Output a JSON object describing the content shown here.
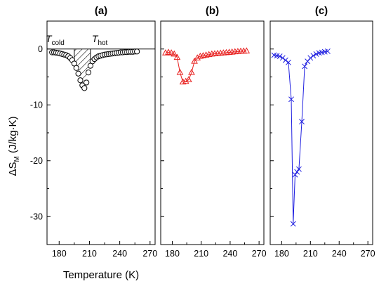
{
  "figure": {
    "ylabel_prefix": "ΔS",
    "ylabel_sub": "M",
    "ylabel_suffix": " (J/kg·K)",
    "colors": {
      "a": "#000000",
      "b": "#e8201f",
      "c": "#1f1fe0",
      "hatch": "#000000"
    }
  },
  "chart_data": [
    {
      "type": "scatter",
      "panel": "a",
      "title": "(a)",
      "xlabel": "Temperature (K)",
      "xlim": [
        168,
        275
      ],
      "ylim": [
        -35,
        5
      ],
      "xticks": [
        180,
        210,
        240,
        270
      ],
      "yticks": [
        0,
        -10,
        -20,
        -30
      ],
      "marker": "circle",
      "connected": false,
      "baseline": 0,
      "annotations": {
        "t_cold": {
          "base": "T",
          "sub": "cold",
          "x": 195
        },
        "t_hot": {
          "base": "T",
          "sub": "hot",
          "x": 211
        },
        "shaded_region": [
          195,
          211
        ]
      },
      "series": [
        {
          "x": [
            173,
            175,
            177,
            179,
            181,
            183,
            185,
            187,
            189,
            191,
            193,
            195,
            197,
            199,
            201,
            203,
            205,
            207,
            209,
            211,
            213,
            215,
            217,
            219,
            221,
            223,
            225,
            227,
            229,
            231,
            233,
            235,
            237,
            239,
            241,
            243,
            245,
            247,
            249,
            251,
            253,
            255,
            257
          ],
          "y": [
            -0.6,
            -0.6,
            -0.65,
            -0.7,
            -0.8,
            -0.9,
            -1.0,
            -1.1,
            -1.3,
            -1.6,
            -2.0,
            -2.6,
            -3.4,
            -4.4,
            -5.6,
            -6.5,
            -7.0,
            -6.0,
            -4.2,
            -3.0,
            -2.2,
            -1.8,
            -1.5,
            -1.3,
            -1.2,
            -1.1,
            -1.0,
            -0.95,
            -0.9,
            -0.85,
            -0.8,
            -0.75,
            -0.7,
            -0.65,
            -0.6,
            -0.6,
            -0.55,
            -0.55,
            -0.5,
            -0.5,
            -0.5,
            -0.45,
            -0.45
          ]
        }
      ]
    },
    {
      "type": "line",
      "panel": "b",
      "title": "(b)",
      "xlabel": "",
      "xlim": [
        168,
        275
      ],
      "ylim": [
        -35,
        5
      ],
      "xticks": [
        180,
        210,
        240,
        270
      ],
      "yticks": [
        0,
        -10,
        -20,
        -30
      ],
      "marker": "triangle",
      "connected": true,
      "series": [
        {
          "x": [
            173,
            176,
            179,
            182,
            185,
            188,
            191,
            194,
            197,
            200,
            203,
            206,
            209,
            212,
            215,
            218,
            221,
            224,
            227,
            230,
            233,
            236,
            239,
            242,
            245,
            248,
            251,
            254,
            257
          ],
          "y": [
            -0.7,
            -0.6,
            -0.7,
            -0.9,
            -1.5,
            -4.2,
            -5.9,
            -5.8,
            -5.5,
            -4.2,
            -2.2,
            -1.6,
            -1.3,
            -1.2,
            -1.1,
            -1.0,
            -0.9,
            -0.85,
            -0.8,
            -0.75,
            -0.7,
            -0.65,
            -0.6,
            -0.55,
            -0.5,
            -0.45,
            -0.4,
            -0.38,
            -0.35
          ]
        }
      ]
    },
    {
      "type": "line",
      "panel": "c",
      "title": "(c)",
      "xlabel": "",
      "xlim": [
        168,
        275
      ],
      "ylim": [
        -35,
        5
      ],
      "xticks": [
        180,
        210,
        240,
        270
      ],
      "yticks": [
        0,
        -10,
        -20,
        -30
      ],
      "marker": "x",
      "connected": true,
      "series": [
        {
          "x": [
            172,
            175,
            178,
            181,
            184,
            187,
            190,
            192,
            194,
            196,
            198,
            201,
            204,
            207,
            210,
            213,
            216,
            219,
            222,
            225,
            228
          ],
          "y": [
            -1.1,
            -1.2,
            -1.3,
            -1.6,
            -2.0,
            -2.4,
            -9.0,
            -31.3,
            -22.5,
            -22.0,
            -21.5,
            -13.0,
            -3.1,
            -2.2,
            -1.6,
            -1.2,
            -0.9,
            -0.7,
            -0.6,
            -0.5,
            -0.4
          ]
        }
      ]
    }
  ]
}
